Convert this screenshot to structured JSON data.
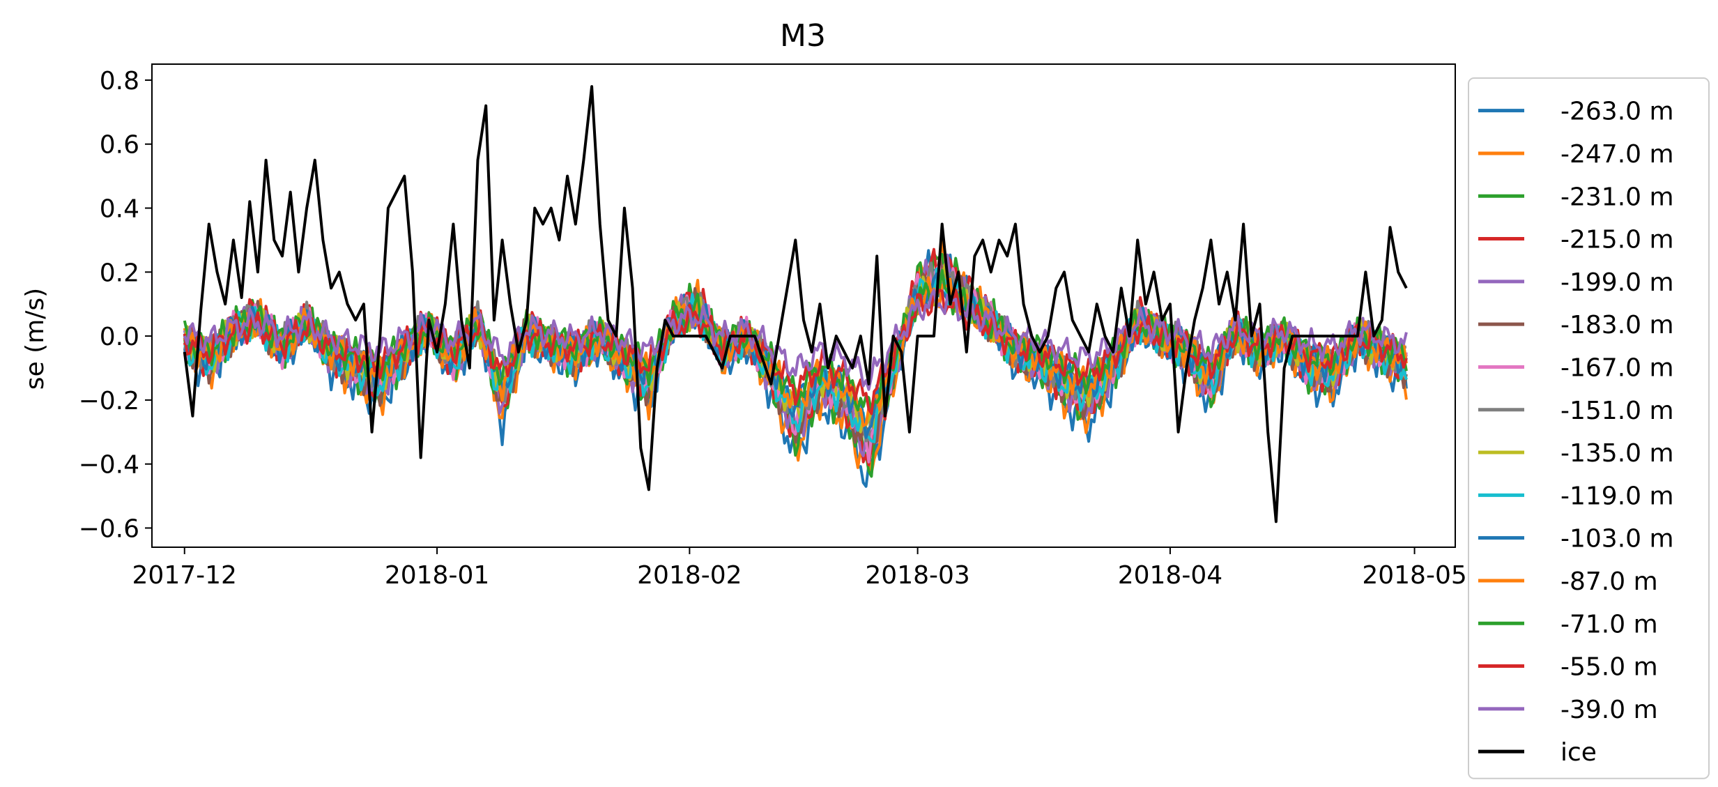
{
  "chart_data": {
    "type": "line",
    "title": "M3",
    "xlabel": "",
    "ylabel": "se (m/s)",
    "xlim": [
      "2017-11-27",
      "2018-05-06"
    ],
    "ylim": [
      -0.66,
      0.85
    ],
    "x_ticks": [
      "2017-12",
      "2018-01",
      "2018-02",
      "2018-03",
      "2018-04",
      "2018-05"
    ],
    "y_ticks": [
      0.8,
      0.6,
      0.4,
      0.2,
      0.0,
      -0.2,
      -0.4,
      -0.6
    ],
    "y_tick_labels": [
      "0.8",
      "0.6",
      "0.4",
      "0.2",
      "0.0",
      "−0.2",
      "−0.4",
      "−0.6"
    ],
    "legend_position": "outside-right",
    "grid": false,
    "x": [
      "2017-12-01",
      "2017-12-04",
      "2017-12-07",
      "2017-12-10",
      "2017-12-13",
      "2017-12-16",
      "2017-12-19",
      "2017-12-22",
      "2017-12-25",
      "2017-12-28",
      "2017-12-31",
      "2018-01-03",
      "2018-01-06",
      "2018-01-09",
      "2018-01-12",
      "2018-01-15",
      "2018-01-18",
      "2018-01-21",
      "2018-01-24",
      "2018-01-27",
      "2018-01-30",
      "2018-02-02",
      "2018-02-05",
      "2018-02-08",
      "2018-02-11",
      "2018-02-14",
      "2018-02-17",
      "2018-02-20",
      "2018-02-23",
      "2018-02-26",
      "2018-03-01",
      "2018-03-04",
      "2018-03-07",
      "2018-03-10",
      "2018-03-13",
      "2018-03-16",
      "2018-03-19",
      "2018-03-22",
      "2018-03-25",
      "2018-03-28",
      "2018-03-31",
      "2018-04-03",
      "2018-04-06",
      "2018-04-09",
      "2018-04-12",
      "2018-04-15",
      "2018-04-18",
      "2018-04-21",
      "2018-04-24",
      "2018-04-27",
      "2018-04-30"
    ],
    "base_profile": [
      -0.02,
      -0.08,
      0.02,
      0.06,
      -0.04,
      0.05,
      -0.06,
      -0.1,
      -0.15,
      -0.05,
      0.03,
      -0.08,
      0.05,
      -0.2,
      0.02,
      -0.03,
      -0.06,
      0.0,
      -0.08,
      -0.15,
      0.05,
      0.1,
      -0.05,
      0.0,
      -0.12,
      -0.28,
      -0.15,
      -0.2,
      -0.35,
      -0.1,
      0.15,
      0.2,
      0.12,
      0.05,
      -0.05,
      -0.08,
      -0.15,
      -0.2,
      -0.1,
      0.05,
      0.0,
      -0.05,
      -0.15,
      0.02,
      -0.05,
      0.0,
      -0.1,
      -0.12,
      0.0,
      -0.05,
      -0.1
    ],
    "series": [
      {
        "name": "-263.0 m",
        "color": "#1f77b4",
        "scale": 1.25,
        "offset": -0.02
      },
      {
        "name": "-247.0 m",
        "color": "#ff7f0e",
        "scale": 1.2,
        "offset": -0.01
      },
      {
        "name": "-231.0 m",
        "color": "#2ca02c",
        "scale": 1.15,
        "offset": 0.0
      },
      {
        "name": "-215.0 m",
        "color": "#d62728",
        "scale": 1.1,
        "offset": 0.01
      },
      {
        "name": "-199.0 m",
        "color": "#9467bd",
        "scale": 1.05,
        "offset": 0.0
      },
      {
        "name": "-183.0 m",
        "color": "#8c564b",
        "scale": 1.0,
        "offset": -0.01
      },
      {
        "name": "-167.0 m",
        "color": "#e377c2",
        "scale": 0.95,
        "offset": 0.0
      },
      {
        "name": "-151.0 m",
        "color": "#7f7f7f",
        "scale": 0.9,
        "offset": 0.01
      },
      {
        "name": "-135.0 m",
        "color": "#bcbd22",
        "scale": 0.85,
        "offset": 0.0
      },
      {
        "name": "-119.0 m",
        "color": "#17becf",
        "scale": 0.9,
        "offset": -0.01
      },
      {
        "name": "-103.0 m",
        "color": "#1f77b4",
        "scale": 0.8,
        "offset": 0.0
      },
      {
        "name": "-87.0 m",
        "color": "#ff7f0e",
        "scale": 0.75,
        "offset": 0.0
      },
      {
        "name": "-71.0 m",
        "color": "#2ca02c",
        "scale": 0.7,
        "offset": 0.01
      },
      {
        "name": "-55.0 m",
        "color": "#d62728",
        "scale": 0.6,
        "offset": 0.0
      },
      {
        "name": "-39.0 m",
        "color": "#9467bd",
        "scale": 0.45,
        "offset": 0.02
      }
    ],
    "ice": {
      "name": "ice",
      "color": "#000000",
      "points": [
        [
          "2017-12-01",
          -0.05
        ],
        [
          "2017-12-02",
          -0.25
        ],
        [
          "2017-12-03",
          0.08
        ],
        [
          "2017-12-04",
          0.35
        ],
        [
          "2017-12-05",
          0.2
        ],
        [
          "2017-12-06",
          0.1
        ],
        [
          "2017-12-07",
          0.3
        ],
        [
          "2017-12-08",
          0.12
        ],
        [
          "2017-12-09",
          0.42
        ],
        [
          "2017-12-10",
          0.2
        ],
        [
          "2017-12-11",
          0.55
        ],
        [
          "2017-12-12",
          0.3
        ],
        [
          "2017-12-13",
          0.25
        ],
        [
          "2017-12-14",
          0.45
        ],
        [
          "2017-12-15",
          0.2
        ],
        [
          "2017-12-16",
          0.4
        ],
        [
          "2017-12-17",
          0.55
        ],
        [
          "2017-12-18",
          0.3
        ],
        [
          "2017-12-19",
          0.15
        ],
        [
          "2017-12-20",
          0.2
        ],
        [
          "2017-12-21",
          0.1
        ],
        [
          "2017-12-22",
          0.05
        ],
        [
          "2017-12-23",
          0.1
        ],
        [
          "2017-12-24",
          -0.3
        ],
        [
          "2017-12-25",
          0.0
        ],
        [
          "2017-12-26",
          0.4
        ],
        [
          "2017-12-27",
          0.45
        ],
        [
          "2017-12-28",
          0.5
        ],
        [
          "2017-12-29",
          0.2
        ],
        [
          "2017-12-30",
          -0.38
        ],
        [
          "2017-12-31",
          0.05
        ],
        [
          "2018-01-01",
          -0.05
        ],
        [
          "2018-01-02",
          0.1
        ],
        [
          "2018-01-03",
          0.35
        ],
        [
          "2018-01-04",
          0.05
        ],
        [
          "2018-01-05",
          -0.1
        ],
        [
          "2018-01-06",
          0.55
        ],
        [
          "2018-01-07",
          0.72
        ],
        [
          "2018-01-08",
          0.05
        ],
        [
          "2018-01-09",
          0.3
        ],
        [
          "2018-01-10",
          0.1
        ],
        [
          "2018-01-11",
          -0.05
        ],
        [
          "2018-01-12",
          0.05
        ],
        [
          "2018-01-13",
          0.4
        ],
        [
          "2018-01-14",
          0.35
        ],
        [
          "2018-01-15",
          0.4
        ],
        [
          "2018-01-16",
          0.3
        ],
        [
          "2018-01-17",
          0.5
        ],
        [
          "2018-01-18",
          0.35
        ],
        [
          "2018-01-19",
          0.55
        ],
        [
          "2018-01-20",
          0.78
        ],
        [
          "2018-01-21",
          0.35
        ],
        [
          "2018-01-22",
          0.05
        ],
        [
          "2018-01-23",
          0.0
        ],
        [
          "2018-01-24",
          0.4
        ],
        [
          "2018-01-25",
          0.15
        ],
        [
          "2018-01-26",
          -0.35
        ],
        [
          "2018-01-27",
          -0.48
        ],
        [
          "2018-01-28",
          -0.1
        ],
        [
          "2018-01-29",
          0.05
        ],
        [
          "2018-01-30",
          0.0
        ],
        [
          "2018-02-01",
          0.0
        ],
        [
          "2018-02-03",
          0.0
        ],
        [
          "2018-02-05",
          -0.1
        ],
        [
          "2018-02-06",
          0.0
        ],
        [
          "2018-02-09",
          0.0
        ],
        [
          "2018-02-11",
          -0.15
        ],
        [
          "2018-02-12",
          0.0
        ],
        [
          "2018-02-14",
          0.3
        ],
        [
          "2018-02-15",
          0.05
        ],
        [
          "2018-02-16",
          -0.05
        ],
        [
          "2018-02-17",
          0.1
        ],
        [
          "2018-02-18",
          -0.1
        ],
        [
          "2018-02-19",
          0.0
        ],
        [
          "2018-02-21",
          -0.1
        ],
        [
          "2018-02-22",
          0.0
        ],
        [
          "2018-02-23",
          -0.15
        ],
        [
          "2018-02-24",
          0.25
        ],
        [
          "2018-02-25",
          -0.25
        ],
        [
          "2018-02-26",
          0.0
        ],
        [
          "2018-02-27",
          -0.05
        ],
        [
          "2018-02-28",
          -0.3
        ],
        [
          "2018-03-01",
          0.0
        ],
        [
          "2018-03-03",
          0.0
        ],
        [
          "2018-03-04",
          0.35
        ],
        [
          "2018-03-05",
          0.1
        ],
        [
          "2018-03-06",
          0.2
        ],
        [
          "2018-03-07",
          -0.05
        ],
        [
          "2018-03-08",
          0.25
        ],
        [
          "2018-03-09",
          0.3
        ],
        [
          "2018-03-10",
          0.2
        ],
        [
          "2018-03-11",
          0.3
        ],
        [
          "2018-03-12",
          0.25
        ],
        [
          "2018-03-13",
          0.35
        ],
        [
          "2018-03-14",
          0.1
        ],
        [
          "2018-03-15",
          0.0
        ],
        [
          "2018-03-16",
          -0.05
        ],
        [
          "2018-03-17",
          0.0
        ],
        [
          "2018-03-18",
          0.15
        ],
        [
          "2018-03-19",
          0.2
        ],
        [
          "2018-03-20",
          0.05
        ],
        [
          "2018-03-21",
          0.0
        ],
        [
          "2018-03-22",
          -0.05
        ],
        [
          "2018-03-23",
          0.1
        ],
        [
          "2018-03-24",
          0.0
        ],
        [
          "2018-03-25",
          -0.05
        ],
        [
          "2018-03-26",
          0.15
        ],
        [
          "2018-03-27",
          0.0
        ],
        [
          "2018-03-28",
          0.3
        ],
        [
          "2018-03-29",
          0.1
        ],
        [
          "2018-03-30",
          0.2
        ],
        [
          "2018-03-31",
          0.05
        ],
        [
          "2018-04-01",
          0.1
        ],
        [
          "2018-04-02",
          -0.3
        ],
        [
          "2018-04-03",
          -0.1
        ],
        [
          "2018-04-04",
          0.05
        ],
        [
          "2018-04-05",
          0.15
        ],
        [
          "2018-04-06",
          0.3
        ],
        [
          "2018-04-07",
          0.1
        ],
        [
          "2018-04-08",
          0.2
        ],
        [
          "2018-04-09",
          0.05
        ],
        [
          "2018-04-10",
          0.35
        ],
        [
          "2018-04-11",
          0.0
        ],
        [
          "2018-04-12",
          0.1
        ],
        [
          "2018-04-13",
          -0.3
        ],
        [
          "2018-04-14",
          -0.58
        ],
        [
          "2018-04-15",
          -0.1
        ],
        [
          "2018-04-16",
          0.0
        ],
        [
          "2018-04-18",
          0.0
        ],
        [
          "2018-04-20",
          0.0
        ],
        [
          "2018-04-22",
          0.0
        ],
        [
          "2018-04-24",
          0.0
        ],
        [
          "2018-04-25",
          0.2
        ],
        [
          "2018-04-26",
          0.0
        ],
        [
          "2018-04-27",
          0.05
        ],
        [
          "2018-04-28",
          0.34
        ],
        [
          "2018-04-29",
          0.2
        ],
        [
          "2018-04-30",
          0.15
        ]
      ]
    }
  }
}
